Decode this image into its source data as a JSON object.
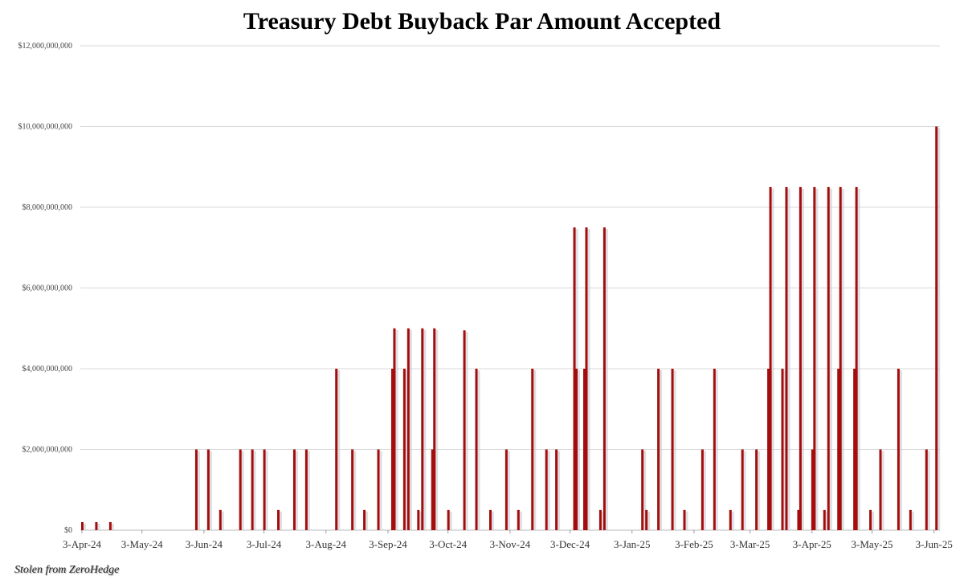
{
  "chart_data": {
    "type": "bar",
    "title": "Treasury Debt Buyback Par Amount Accepted",
    "xlabel": "",
    "ylabel": "",
    "ylim": [
      0,
      12000000000
    ],
    "y_ticks": [
      "$0",
      "$2,000,000,000",
      "$4,000,000,000",
      "$6,000,000,000",
      "$8,000,000,000",
      "$10,000,000,000",
      "$12,000,000,000"
    ],
    "x_ticks": [
      "3-Apr-24",
      "3-May-24",
      "3-Jun-24",
      "3-Jul-24",
      "3-Aug-24",
      "3-Sep-24",
      "3-Oct-24",
      "3-Nov-24",
      "3-Dec-24",
      "3-Jan-25",
      "3-Feb-25",
      "3-Mar-25",
      "3-Apr-25",
      "3-May-25",
      "3-Jun-25"
    ],
    "x_tick_dates": [
      "2024-04-03",
      "2024-05-03",
      "2024-06-03",
      "2024-07-03",
      "2024-08-03",
      "2024-09-03",
      "2024-10-03",
      "2024-11-03",
      "2024-12-03",
      "2025-01-03",
      "2025-02-03",
      "2025-03-03",
      "2025-04-03",
      "2025-05-03",
      "2025-06-03"
    ],
    "grid": true,
    "bar_color": "#a50d0d",
    "points": [
      [
        "2024-04-03",
        200000000
      ],
      [
        "2024-04-10",
        200000000
      ],
      [
        "2024-04-17",
        200000000
      ],
      [
        "2024-05-30",
        2000000000
      ],
      [
        "2024-06-05",
        2000000000
      ],
      [
        "2024-06-11",
        500000000
      ],
      [
        "2024-06-21",
        2000000000
      ],
      [
        "2024-06-27",
        2000000000
      ],
      [
        "2024-07-03",
        2000000000
      ],
      [
        "2024-07-10",
        500000000
      ],
      [
        "2024-07-18",
        2000000000
      ],
      [
        "2024-07-24",
        2000000000
      ],
      [
        "2024-08-08",
        4000000000
      ],
      [
        "2024-08-16",
        2000000000
      ],
      [
        "2024-08-22",
        500000000
      ],
      [
        "2024-08-29",
        2000000000
      ],
      [
        "2024-09-05",
        4000000000
      ],
      [
        "2024-09-06",
        5000000000
      ],
      [
        "2024-09-11",
        4000000000
      ],
      [
        "2024-09-13",
        5000000000
      ],
      [
        "2024-09-18",
        500000000
      ],
      [
        "2024-09-20",
        5000000000
      ],
      [
        "2024-09-25",
        2000000000
      ],
      [
        "2024-09-26",
        5000000000
      ],
      [
        "2024-10-03",
        500000000
      ],
      [
        "2024-10-11",
        4950000000
      ],
      [
        "2024-10-17",
        4000000000
      ],
      [
        "2024-10-24",
        500000000
      ],
      [
        "2024-11-01",
        2000000000
      ],
      [
        "2024-11-07",
        500000000
      ],
      [
        "2024-11-14",
        4000000000
      ],
      [
        "2024-11-21",
        2000000000
      ],
      [
        "2024-11-26",
        2000000000
      ],
      [
        "2024-12-05",
        7500000000
      ],
      [
        "2024-12-06",
        4000000000
      ],
      [
        "2024-12-10",
        4000000000
      ],
      [
        "2024-12-11",
        7500000000
      ],
      [
        "2024-12-18",
        500000000
      ],
      [
        "2024-12-20",
        7500000000
      ],
      [
        "2025-01-08",
        2000000000
      ],
      [
        "2025-01-10",
        500000000
      ],
      [
        "2025-01-16",
        4000000000
      ],
      [
        "2025-01-23",
        4000000000
      ],
      [
        "2025-01-29",
        500000000
      ],
      [
        "2025-02-07",
        2000000000
      ],
      [
        "2025-02-13",
        4000000000
      ],
      [
        "2025-02-21",
        500000000
      ],
      [
        "2025-02-27",
        2000000000
      ],
      [
        "2025-03-06",
        2000000000
      ],
      [
        "2025-03-12",
        4000000000
      ],
      [
        "2025-03-13",
        8500000000
      ],
      [
        "2025-03-19",
        4000000000
      ],
      [
        "2025-03-21",
        8500000000
      ],
      [
        "2025-03-27",
        500000000
      ],
      [
        "2025-03-28",
        8500000000
      ],
      [
        "2025-04-03",
        2000000000
      ],
      [
        "2025-04-04",
        8500000000
      ],
      [
        "2025-04-09",
        500000000
      ],
      [
        "2025-04-11",
        8500000000
      ],
      [
        "2025-04-16",
        4000000000
      ],
      [
        "2025-04-17",
        8500000000
      ],
      [
        "2025-04-24",
        4000000000
      ],
      [
        "2025-04-25",
        8500000000
      ],
      [
        "2025-05-02",
        500000000
      ],
      [
        "2025-05-07",
        2000000000
      ],
      [
        "2025-05-16",
        4000000000
      ],
      [
        "2025-05-22",
        500000000
      ],
      [
        "2025-05-30",
        2000000000
      ],
      [
        "2025-06-04",
        10000000000
      ]
    ]
  },
  "footer": "Stolen from ZeroHedge"
}
